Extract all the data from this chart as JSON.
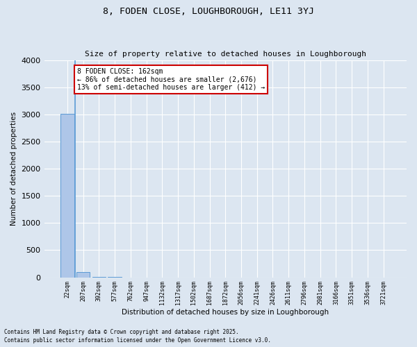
{
  "title1": "8, FODEN CLOSE, LOUGHBOROUGH, LE11 3YJ",
  "title2": "Size of property relative to detached houses in Loughborough",
  "xlabel": "Distribution of detached houses by size in Loughborough",
  "ylabel": "Number of detached properties",
  "categories": [
    "22sqm",
    "207sqm",
    "392sqm",
    "577sqm",
    "762sqm",
    "947sqm",
    "1132sqm",
    "1317sqm",
    "1502sqm",
    "1687sqm",
    "1872sqm",
    "2056sqm",
    "2241sqm",
    "2426sqm",
    "2611sqm",
    "2796sqm",
    "2981sqm",
    "3166sqm",
    "3351sqm",
    "3536sqm",
    "3721sqm"
  ],
  "values": [
    3005,
    100,
    4,
    2,
    1,
    1,
    1,
    0,
    0,
    0,
    0,
    0,
    0,
    0,
    0,
    0,
    0,
    0,
    0,
    0,
    0
  ],
  "bar_color": "#aec6e8",
  "bar_edge_color": "#5b9bd5",
  "property_line_x": 0.5,
  "annotation_title": "8 FODEN CLOSE: 162sqm",
  "annotation_line1": "← 86% of detached houses are smaller (2,676)",
  "annotation_line2": "13% of semi-detached houses are larger (412) →",
  "annotation_box_color": "#ffffff",
  "annotation_box_edge": "#cc0000",
  "footer1": "Contains HM Land Registry data © Crown copyright and database right 2025.",
  "footer2": "Contains public sector information licensed under the Open Government Licence v3.0.",
  "bg_color": "#dce6f1",
  "plot_bg_color": "#dce6f1",
  "grid_color": "#ffffff",
  "ylim": [
    0,
    4000
  ],
  "yticks": [
    0,
    500,
    1000,
    1500,
    2000,
    2500,
    3000,
    3500,
    4000
  ]
}
